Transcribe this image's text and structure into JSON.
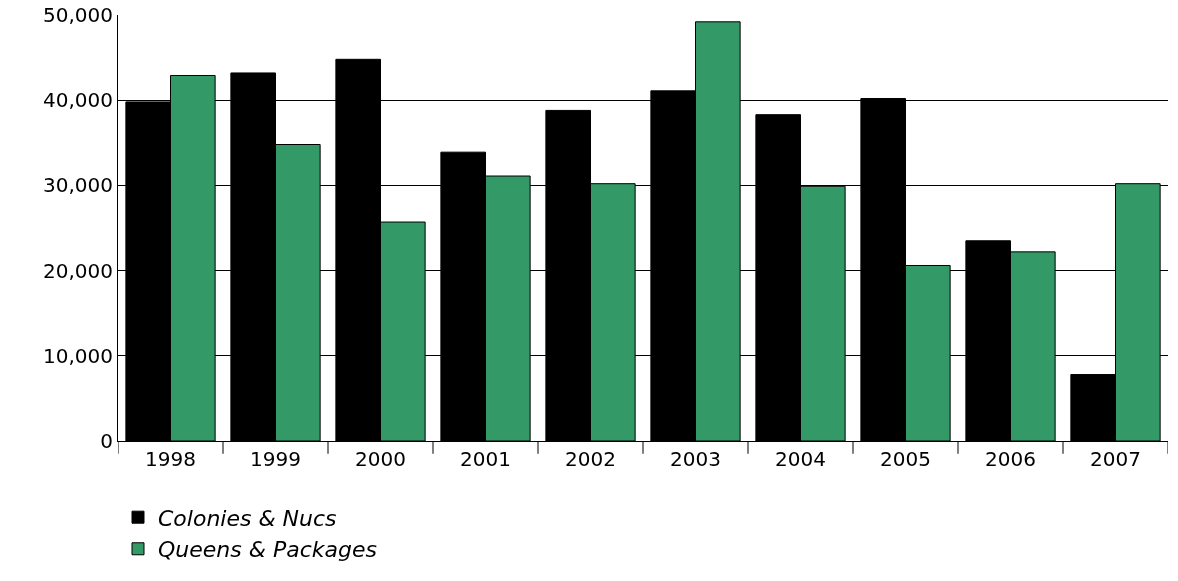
{
  "chart_data": {
    "type": "bar",
    "categories": [
      "1998",
      "1999",
      "2000",
      "2001",
      "2002",
      "2003",
      "2004",
      "2005",
      "2006",
      "2007"
    ],
    "series": [
      {
        "name": "Colonies & Nucs",
        "color": "#000000",
        "values": [
          39800,
          43200,
          44800,
          33900,
          38800,
          41100,
          38300,
          40200,
          23500,
          7800
        ]
      },
      {
        "name": "Queens & Packages",
        "color": "#339966",
        "values": [
          42900,
          34800,
          25700,
          31100,
          30200,
          49200,
          29900,
          20600,
          22200,
          30200
        ]
      }
    ],
    "ylim": [
      0,
      50000
    ],
    "yticks": [
      {
        "value": 0,
        "label": "0"
      },
      {
        "value": 10000,
        "label": "10,000"
      },
      {
        "value": 20000,
        "label": "20,000"
      },
      {
        "value": 30000,
        "label": "30,000"
      },
      {
        "value": 40000,
        "label": "40,000"
      },
      {
        "value": 50000,
        "label": "50,000"
      }
    ],
    "grid": "y",
    "legend": "bottom left"
  }
}
